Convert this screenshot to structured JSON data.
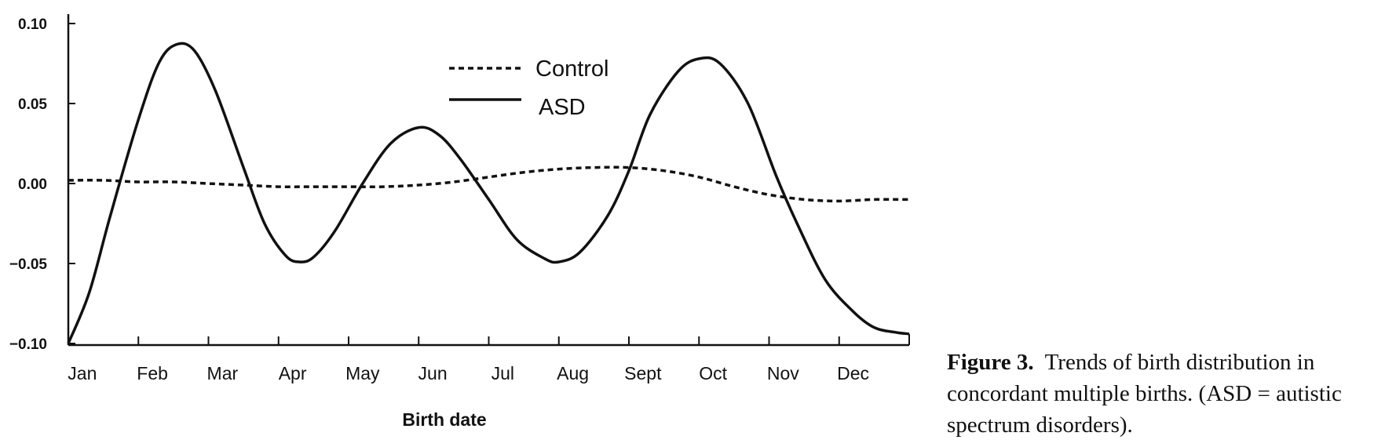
{
  "chart_data": {
    "type": "line",
    "xlabel": "Birth date",
    "ylabel": "",
    "ylim": [
      -0.1,
      0.1
    ],
    "yticks": [
      "0.10",
      "0.05",
      "0.00",
      "−0.05",
      "−0.10"
    ],
    "ytick_values": [
      0.1,
      0.05,
      0.0,
      -0.05,
      -0.1
    ],
    "categories": [
      "Jan",
      "Feb",
      "Mar",
      "Apr",
      "May",
      "Jun",
      "Jul",
      "Aug",
      "Sept",
      "Oct",
      "Nov",
      "Dec"
    ],
    "legend_position": "top-center",
    "series": [
      {
        "name": "Control",
        "style": "dotted",
        "points": [
          [
            0.0,
            0.002
          ],
          [
            0.5,
            0.002
          ],
          [
            1.0,
            0.001
          ],
          [
            1.5,
            0.001
          ],
          [
            2.0,
            0.0
          ],
          [
            2.5,
            -0.001
          ],
          [
            3.0,
            -0.002
          ],
          [
            3.5,
            -0.002
          ],
          [
            4.0,
            -0.002
          ],
          [
            4.5,
            -0.002
          ],
          [
            5.0,
            -0.001
          ],
          [
            5.5,
            0.001
          ],
          [
            6.0,
            0.004
          ],
          [
            6.5,
            0.007
          ],
          [
            7.0,
            0.009
          ],
          [
            7.5,
            0.01
          ],
          [
            8.0,
            0.01
          ],
          [
            8.5,
            0.008
          ],
          [
            9.0,
            0.004
          ],
          [
            9.5,
            -0.002
          ],
          [
            10.0,
            -0.007
          ],
          [
            10.5,
            -0.01
          ],
          [
            11.0,
            -0.011
          ],
          [
            11.5,
            -0.01
          ],
          [
            12.0,
            -0.01
          ]
        ]
      },
      {
        "name": "ASD",
        "style": "solid",
        "points": [
          [
            0.0,
            -0.1
          ],
          [
            0.3,
            -0.068
          ],
          [
            0.6,
            -0.02
          ],
          [
            1.0,
            0.04
          ],
          [
            1.3,
            0.076
          ],
          [
            1.55,
            0.087
          ],
          [
            1.8,
            0.083
          ],
          [
            2.1,
            0.058
          ],
          [
            2.5,
            0.01
          ],
          [
            2.8,
            -0.025
          ],
          [
            3.1,
            -0.045
          ],
          [
            3.3,
            -0.049
          ],
          [
            3.5,
            -0.046
          ],
          [
            3.8,
            -0.03
          ],
          [
            4.2,
            0.0
          ],
          [
            4.6,
            0.025
          ],
          [
            5.0,
            0.035
          ],
          [
            5.3,
            0.03
          ],
          [
            5.6,
            0.015
          ],
          [
            6.0,
            -0.01
          ],
          [
            6.4,
            -0.035
          ],
          [
            6.8,
            -0.047
          ],
          [
            7.0,
            -0.049
          ],
          [
            7.3,
            -0.043
          ],
          [
            7.7,
            -0.02
          ],
          [
            8.0,
            0.008
          ],
          [
            8.3,
            0.043
          ],
          [
            8.7,
            0.07
          ],
          [
            9.0,
            0.078
          ],
          [
            9.3,
            0.075
          ],
          [
            9.7,
            0.05
          ],
          [
            10.1,
            0.005
          ],
          [
            10.4,
            -0.025
          ],
          [
            10.8,
            -0.06
          ],
          [
            11.2,
            -0.08
          ],
          [
            11.5,
            -0.09
          ],
          [
            11.8,
            -0.093
          ],
          [
            12.0,
            -0.094
          ]
        ]
      }
    ]
  },
  "caption": {
    "label": "Figure 3.",
    "text_line1": "Trends of birth distribution in",
    "text_line2": "concordant multiple births. (ASD = autistic",
    "text_line3": "spectrum disorders)."
  }
}
